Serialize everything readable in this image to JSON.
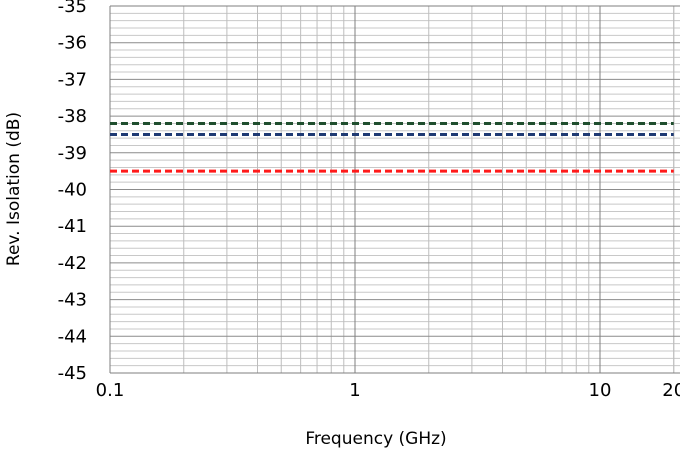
{
  "chart_data": {
    "type": "line",
    "title": "",
    "xlabel": "Frequency (GHz)",
    "ylabel": "Rev. Isolation (dB)",
    "x_scale": "log",
    "xlim": [
      0.1,
      20
    ],
    "ylim": [
      -45,
      -35
    ],
    "x_ticks": [
      0.1,
      1,
      10,
      20
    ],
    "x_tick_labels": [
      "0.1",
      "1",
      "10",
      "20"
    ],
    "y_ticks": [
      -45,
      -44,
      -43,
      -42,
      -41,
      -40,
      -39,
      -38,
      -37,
      -36,
      -35
    ],
    "y_tick_labels": [
      "-45",
      "-44",
      "-43",
      "-42",
      "-41",
      "-40",
      "-39",
      "-38",
      "-37",
      "-36",
      "-35"
    ],
    "grid": true,
    "legend": "none",
    "series": [
      {
        "color": "#1f4e2e",
        "style": "dashed",
        "x": [
          0.1,
          20
        ],
        "y": [
          -38.2,
          -38.2
        ]
      },
      {
        "color": "#1f3a73",
        "style": "dashed",
        "x": [
          0.1,
          20
        ],
        "y": [
          -38.5,
          -38.5
        ]
      },
      {
        "color": "#ff1a1a",
        "style": "dashed",
        "x": [
          0.1,
          20
        ],
        "y": [
          -39.5,
          -39.5
        ]
      }
    ]
  }
}
